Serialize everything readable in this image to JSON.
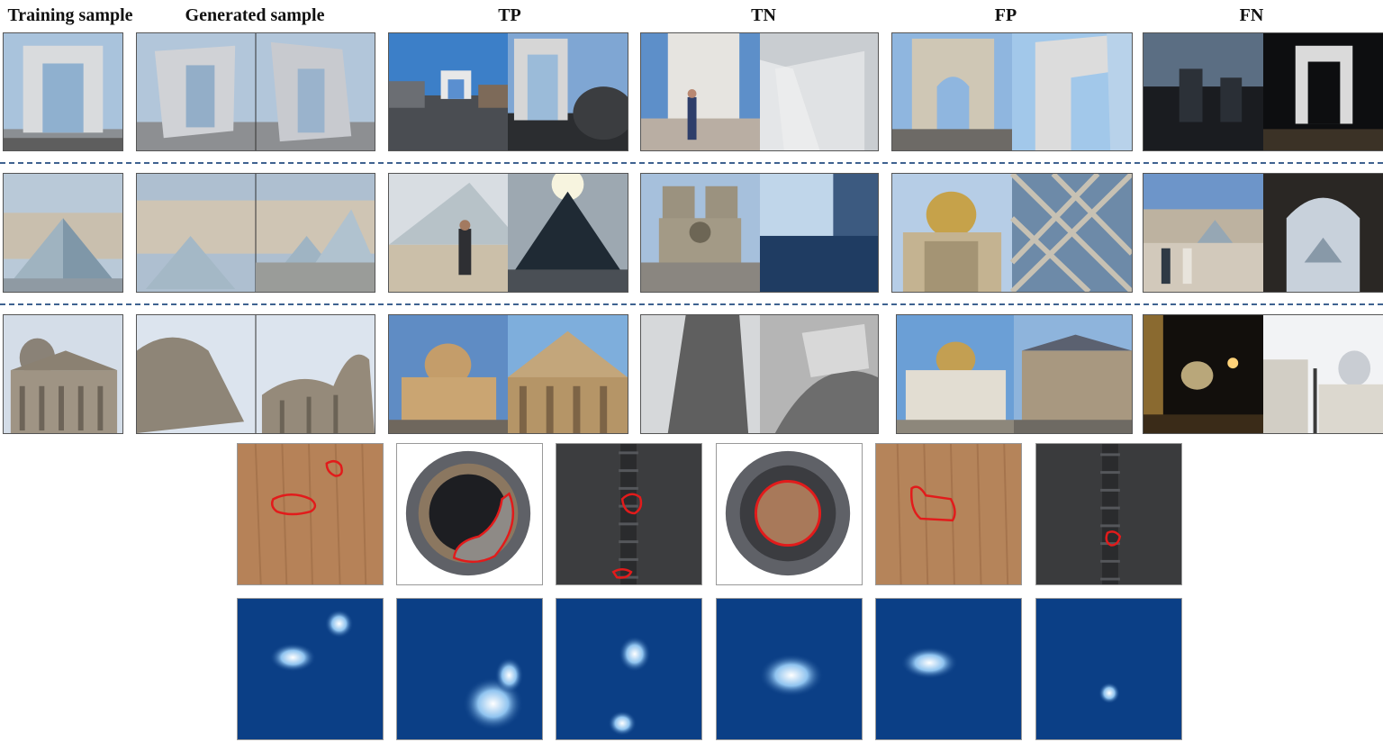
{
  "headers": {
    "training": "Training sample",
    "generated": "Generated sample",
    "tp": "TP",
    "tn": "TN",
    "fp": "FP",
    "fn": "FN"
  },
  "rows": [
    {
      "landmark": "grande-arche",
      "sky": "#a9c3dc",
      "stone": "#d3d3d3"
    },
    {
      "landmark": "louvre-pyramid",
      "sky": "#b6c8da",
      "stone": "#c8bfb0"
    },
    {
      "landmark": "pantheon",
      "sky": "#c9d6e4",
      "stone": "#9b8f80"
    }
  ],
  "defect_samples": [
    {
      "texture": "wood",
      "label": "wood-defect"
    },
    {
      "texture": "metal-nut",
      "label": "metal-nut-defect"
    },
    {
      "texture": "zipper",
      "label": "zipper-defect"
    },
    {
      "texture": "metal-nut",
      "label": "metal-nut-defect"
    },
    {
      "texture": "wood",
      "label": "wood-defect"
    },
    {
      "texture": "zipper",
      "label": "zipper-defect"
    }
  ],
  "colors": {
    "separator": "#3f6290",
    "contour": "#e21b1b",
    "heatmap_bg": "#0b3f86",
    "heatmap_hot": "#ffffff"
  }
}
